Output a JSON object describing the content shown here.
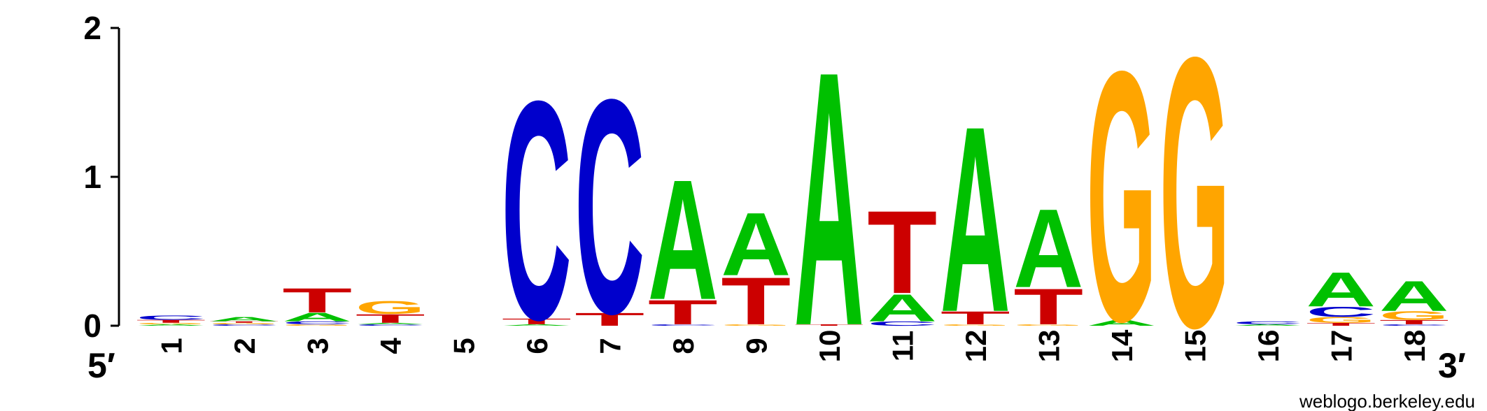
{
  "chart_data": {
    "type": "sequence-logo",
    "ylim": [
      0,
      2
    ],
    "yticks": [
      "0",
      "1",
      "2"
    ],
    "end_left": "5′",
    "end_right": "3′",
    "colors": {
      "A": "#00c000",
      "C": "#0000cc",
      "G": "#ffa500",
      "T": "#cc0000"
    },
    "positions": [
      {
        "label": "1",
        "stack": [
          [
            "A",
            0.01
          ],
          [
            "G",
            0.01
          ],
          [
            "T",
            0.02
          ],
          [
            "C",
            0.03
          ]
        ]
      },
      {
        "label": "2",
        "stack": [
          [
            "C",
            0.01
          ],
          [
            "G",
            0.01
          ],
          [
            "T",
            0.01
          ],
          [
            "A",
            0.03
          ]
        ]
      },
      {
        "label": "3",
        "stack": [
          [
            "G",
            0.01
          ],
          [
            "C",
            0.02
          ],
          [
            "A",
            0.06
          ],
          [
            "T",
            0.17
          ]
        ]
      },
      {
        "label": "4",
        "stack": [
          [
            "C",
            0.01
          ],
          [
            "A",
            0.01
          ],
          [
            "T",
            0.06
          ],
          [
            "G",
            0.09
          ]
        ]
      },
      {
        "label": "5",
        "stack": []
      },
      {
        "label": "6",
        "stack": [
          [
            "A",
            0.01
          ],
          [
            "T",
            0.04
          ],
          [
            "C",
            1.53
          ]
        ]
      },
      {
        "label": "7",
        "stack": [
          [
            "T",
            0.09
          ],
          [
            "C",
            1.5
          ]
        ]
      },
      {
        "label": "8",
        "stack": [
          [
            "C",
            0.01
          ],
          [
            "T",
            0.17
          ],
          [
            "A",
            0.84
          ]
        ]
      },
      {
        "label": "9",
        "stack": [
          [
            "G",
            0.01
          ],
          [
            "T",
            0.33
          ],
          [
            "A",
            0.44
          ]
        ]
      },
      {
        "label": "10",
        "stack": [
          [
            "T",
            0.01
          ],
          [
            "A",
            1.78
          ]
        ]
      },
      {
        "label": "11",
        "stack": [
          [
            "C",
            0.03
          ],
          [
            "A",
            0.19
          ],
          [
            "T",
            0.58
          ]
        ]
      },
      {
        "label": "12",
        "stack": [
          [
            "G",
            0.01
          ],
          [
            "T",
            0.09
          ],
          [
            "A",
            1.3
          ]
        ]
      },
      {
        "label": "13",
        "stack": [
          [
            "G",
            0.01
          ],
          [
            "T",
            0.25
          ],
          [
            "A",
            0.55
          ]
        ]
      },
      {
        "label": "14",
        "stack": [
          [
            "A",
            0.04
          ],
          [
            "G",
            1.75
          ]
        ]
      },
      {
        "label": "15",
        "stack": [
          [
            "G",
            1.89
          ]
        ]
      },
      {
        "label": "16",
        "stack": [
          [
            "A",
            0.01
          ],
          [
            "C",
            0.02
          ]
        ]
      },
      {
        "label": "17",
        "stack": [
          [
            "T",
            0.02
          ],
          [
            "G",
            0.04
          ],
          [
            "C",
            0.07
          ],
          [
            "A",
            0.24
          ]
        ]
      },
      {
        "label": "18",
        "stack": [
          [
            "C",
            0.01
          ],
          [
            "T",
            0.03
          ],
          [
            "G",
            0.06
          ],
          [
            "A",
            0.21
          ]
        ]
      }
    ]
  },
  "credit": "weblogo.berkeley.edu"
}
